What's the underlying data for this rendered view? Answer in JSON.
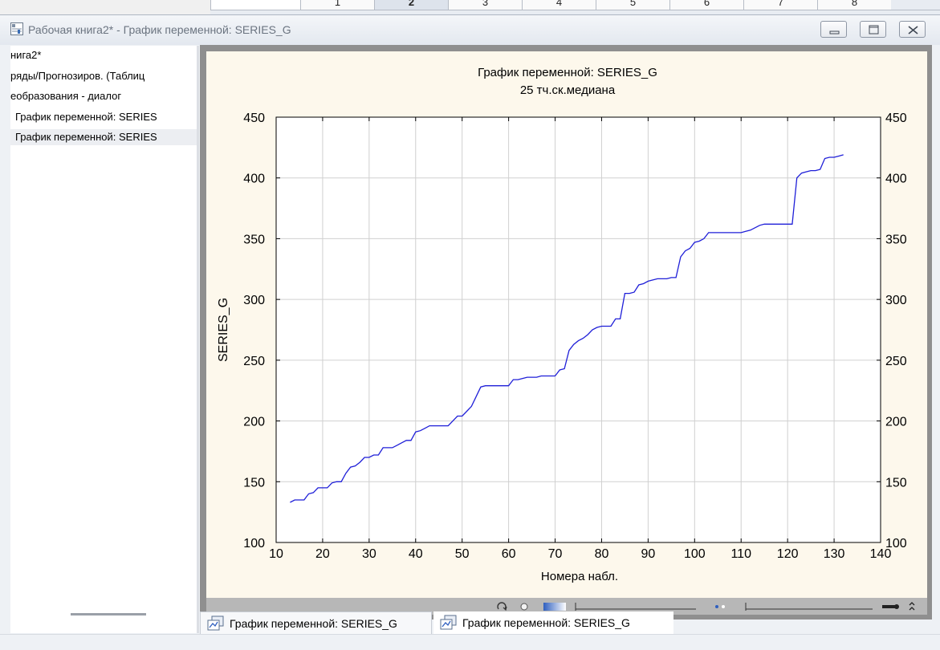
{
  "spreadsheet": {
    "column_headers": [
      "",
      "1",
      "2",
      "3",
      "4",
      "5",
      "6",
      "7",
      "8"
    ]
  },
  "window": {
    "title": "Рабочая книга2* - График переменной: SERIES_G",
    "buttons": [
      "minimize",
      "restore",
      "close"
    ]
  },
  "tree": {
    "items": [
      {
        "label": "нига2*",
        "indent": false,
        "selected": false
      },
      {
        "label": "ряды/Прогнозиров. (Таблиц",
        "indent": false,
        "selected": false
      },
      {
        "label": "еобразования - диалог",
        "indent": false,
        "selected": false
      },
      {
        "label": "График переменной: SERIES",
        "indent": true,
        "selected": false
      },
      {
        "label": "График переменной: SERIES",
        "indent": true,
        "selected": true
      }
    ]
  },
  "tabs": [
    {
      "label": "График переменной: SERIES_G",
      "active": true
    },
    {
      "label": "График переменной: SERIES_G",
      "active": false
    }
  ],
  "colors": {
    "line": "#1f1fd8",
    "plot_background": "#fdf8ec",
    "grid": "#d0d0d0",
    "window_bg": "#eef1f5"
  },
  "icons": {
    "title": "workbook-icon",
    "tab": "graph-document-icon"
  },
  "chart_data": {
    "type": "line",
    "title": "График переменной: SERIES_G",
    "subtitle": "25 тч.ск.медиана",
    "xlabel": "Номера набл.",
    "ylabel": "SERIES_G",
    "xlim": [
      10,
      140
    ],
    "ylim": [
      100,
      450
    ],
    "xticks": [
      10,
      20,
      30,
      40,
      50,
      60,
      70,
      80,
      90,
      100,
      110,
      120,
      130,
      140
    ],
    "yticks": [
      100,
      150,
      200,
      250,
      300,
      350,
      400,
      450
    ],
    "right_axis_ticks": true,
    "grid": true,
    "legend": "none",
    "series": [
      {
        "x": [
          13,
          14,
          16,
          17,
          18,
          19,
          20,
          21,
          22,
          23,
          24,
          25,
          26,
          27,
          28,
          29,
          30,
          31,
          32,
          33,
          34,
          35,
          36,
          37,
          38,
          39,
          40,
          41,
          42,
          43,
          44,
          45,
          46,
          47,
          48,
          49,
          50,
          51,
          52,
          53,
          54,
          55,
          56,
          57,
          58,
          59,
          60,
          61,
          62,
          63,
          64,
          65,
          66,
          67,
          68,
          69,
          70,
          71,
          72,
          73,
          74,
          75,
          76,
          77,
          78,
          79,
          80,
          81,
          82,
          83,
          84,
          85,
          86,
          87,
          88,
          89,
          90,
          91,
          92,
          93,
          94,
          95,
          96,
          97,
          98,
          99,
          100,
          101,
          102,
          103,
          104,
          105,
          106,
          107,
          108,
          109,
          110,
          111,
          112,
          113,
          114,
          115,
          116,
          117,
          118,
          119,
          120,
          121,
          122,
          123,
          124,
          125,
          126,
          127,
          128,
          129,
          130,
          131,
          132
        ],
        "y": [
          133,
          135,
          135,
          140,
          141,
          145,
          145,
          145,
          149,
          150,
          150,
          157,
          162,
          163,
          166,
          170,
          170,
          172,
          172,
          178,
          178,
          178,
          180,
          182,
          184,
          184,
          191,
          192,
          194,
          196,
          196,
          196,
          196,
          196,
          200,
          204,
          204,
          208,
          212,
          220,
          228,
          229,
          229,
          229,
          229,
          229,
          229,
          234,
          234,
          235,
          236,
          236,
          236,
          237,
          237,
          237,
          237,
          242,
          243,
          258,
          263,
          266,
          268,
          271,
          275,
          277,
          278,
          278,
          278,
          284,
          284,
          305,
          305,
          306,
          312,
          313,
          315,
          316,
          317,
          317,
          317,
          318,
          318,
          335,
          340,
          342,
          347,
          348,
          350,
          355,
          355,
          355,
          355,
          355,
          355,
          355,
          355,
          356,
          357,
          359,
          361,
          362,
          362,
          362,
          362,
          362,
          362,
          362,
          400,
          404,
          405,
          406,
          406,
          407,
          416,
          417,
          417,
          418,
          419
        ]
      }
    ]
  }
}
